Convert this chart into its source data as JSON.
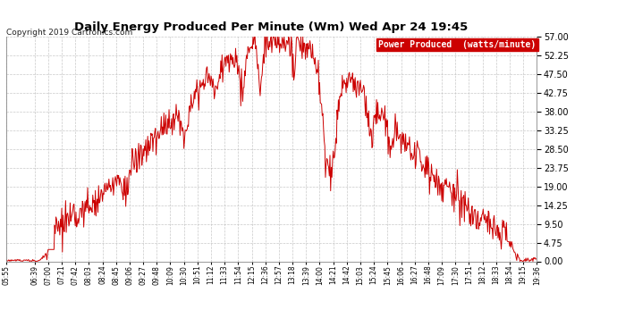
{
  "title": "Daily Energy Produced Per Minute (Wm) Wed Apr 24 19:45",
  "copyright": "Copyright 2019 Cartronics.com",
  "legend_label": "Power Produced  (watts/minute)",
  "legend_bg": "#cc0000",
  "legend_fg": "#ffffff",
  "line_color": "#cc0000",
  "bg_color": "#ffffff",
  "grid_color": "#bbbbbb",
  "title_color": "#000000",
  "ymin": 0.0,
  "ymax": 57.0,
  "yticks": [
    0.0,
    4.75,
    9.5,
    14.25,
    19.0,
    23.75,
    28.5,
    33.25,
    38.0,
    42.75,
    47.5,
    52.25,
    57.0
  ],
  "x_start_min": 355,
  "x_end_min": 1176,
  "tick_labels": [
    "05:55",
    "06:39",
    "07:00",
    "07:21",
    "07:42",
    "08:03",
    "08:24",
    "08:45",
    "09:06",
    "09:27",
    "09:48",
    "10:09",
    "10:30",
    "10:51",
    "11:12",
    "11:33",
    "11:54",
    "12:15",
    "12:36",
    "12:57",
    "13:18",
    "13:39",
    "14:00",
    "14:21",
    "14:42",
    "15:03",
    "15:24",
    "15:45",
    "16:06",
    "16:27",
    "16:48",
    "17:09",
    "17:30",
    "17:51",
    "18:12",
    "18:33",
    "18:54",
    "19:15",
    "19:36"
  ],
  "tick_positions_min": [
    355,
    399,
    420,
    441,
    462,
    483,
    504,
    525,
    546,
    567,
    588,
    609,
    630,
    651,
    672,
    693,
    714,
    735,
    756,
    777,
    798,
    819,
    840,
    861,
    882,
    903,
    924,
    945,
    966,
    987,
    1008,
    1029,
    1050,
    1071,
    1092,
    1113,
    1134,
    1155,
    1176
  ]
}
